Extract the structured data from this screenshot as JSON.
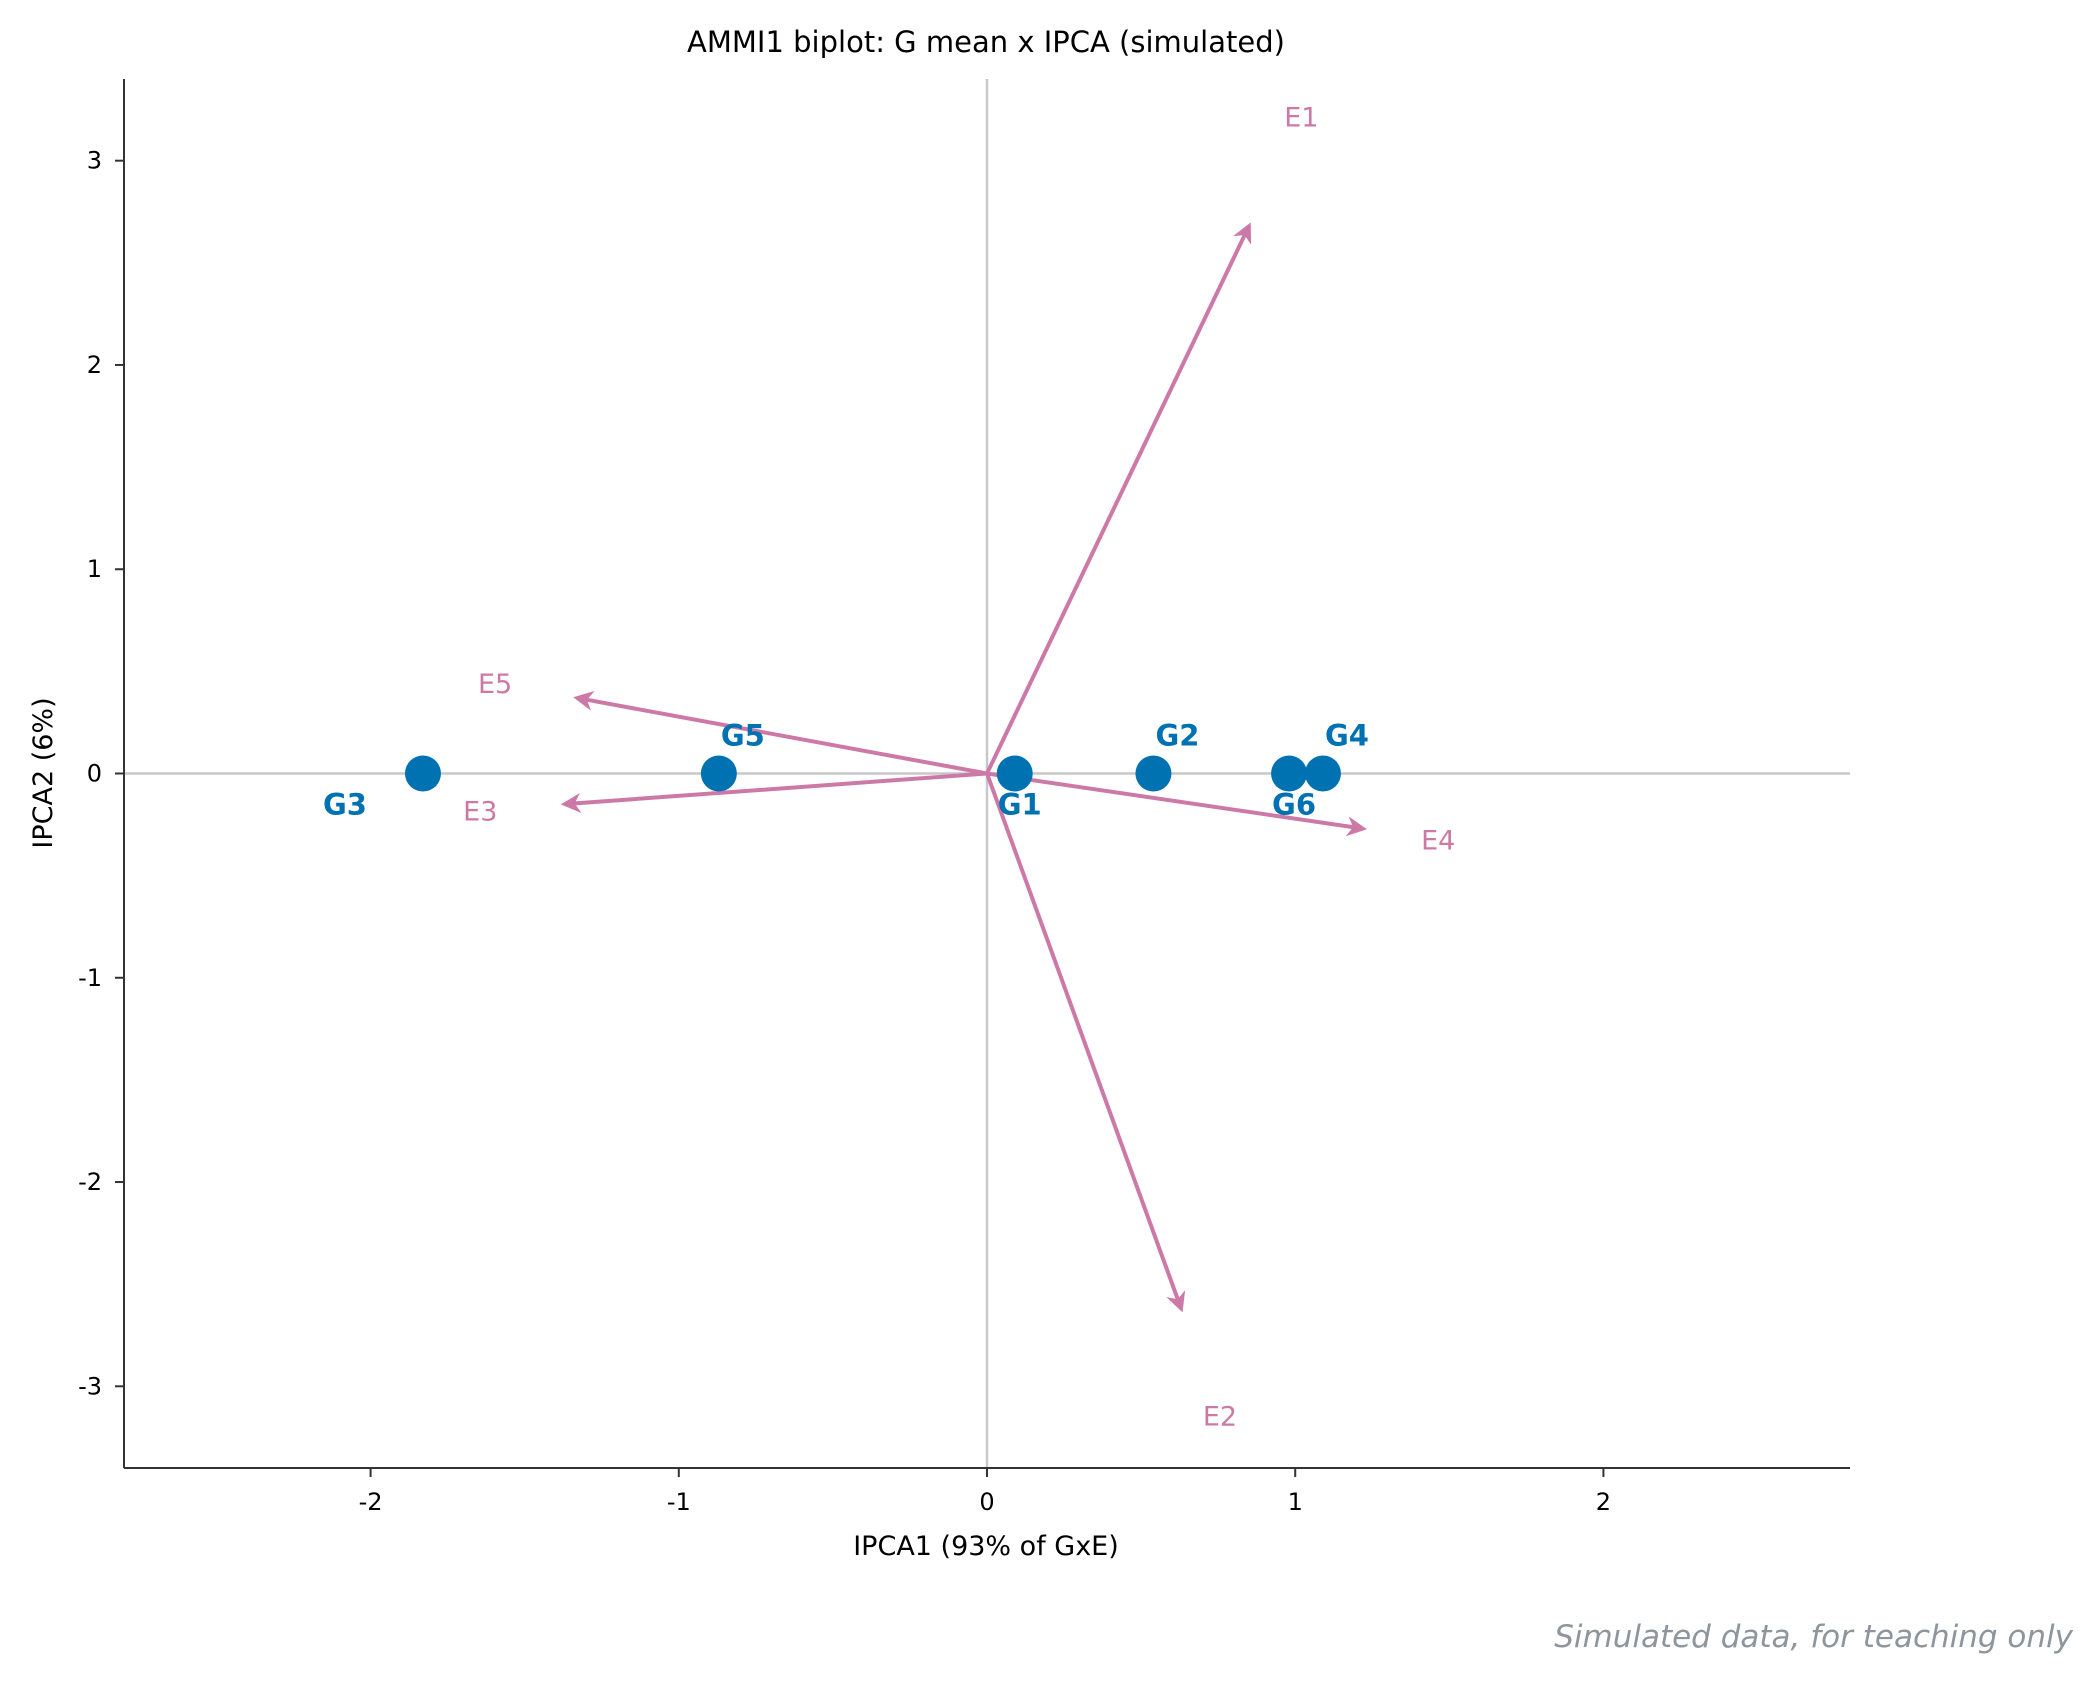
{
  "chart_data": {
    "type": "scatter",
    "title": "AMMI1 biplot: G mean x IPCA (simulated)",
    "xlabel": "IPCA1 (93% of GxE)",
    "ylabel": "IPCA2 (6%)",
    "xlim": [
      -2.8,
      2.8
    ],
    "ylim": [
      -3.4,
      3.4
    ],
    "xticks": [
      -2,
      -1,
      0,
      1,
      2
    ],
    "xtick_labels": [
      "-2",
      "-1",
      "0",
      "1",
      "2"
    ],
    "yticks": [
      -3,
      -2,
      -1,
      0,
      1,
      2,
      3
    ],
    "ytick_labels": [
      "-3",
      "-2",
      "-1",
      "0",
      "1",
      "2",
      "3"
    ],
    "grid": false,
    "reference_lines": {
      "x": 0,
      "y": 0,
      "color": "#c8c8c8"
    },
    "genotypes": {
      "color": "#0072b2",
      "points": [
        {
          "label": "G1",
          "x": 0.09,
          "y": 0
        },
        {
          "label": "G2",
          "x": 0.54,
          "y": 0
        },
        {
          "label": "G3",
          "x": -1.83,
          "y": 0
        },
        {
          "label": "G4",
          "x": 1.09,
          "y": 0
        },
        {
          "label": "G5",
          "x": -0.87,
          "y": 0
        },
        {
          "label": "G6",
          "x": 0.98,
          "y": 0
        }
      ]
    },
    "environments": {
      "color": "#cc79a7",
      "vectors": [
        {
          "label": "E1",
          "x": 0.85,
          "y": 2.68
        },
        {
          "label": "E2",
          "x": 0.63,
          "y": -2.62
        },
        {
          "label": "E3",
          "x": -1.37,
          "y": -0.15
        },
        {
          "label": "E4",
          "x": 1.22,
          "y": -0.27
        },
        {
          "label": "E5",
          "x": -1.33,
          "y": 0.37
        }
      ]
    }
  },
  "footnote": "Simulated data, for teaching only"
}
